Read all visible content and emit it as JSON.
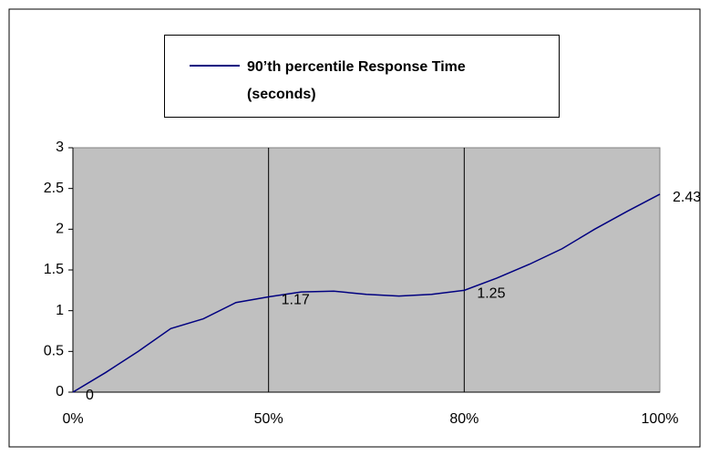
{
  "chart_data": {
    "type": "line",
    "categories": [
      "0%",
      null,
      null,
      null,
      null,
      null,
      "50%",
      null,
      null,
      null,
      null,
      null,
      "80%",
      null,
      null,
      null,
      null,
      null,
      "100%"
    ],
    "series": [
      {
        "name": "90’th percentile Response Time (seconds)",
        "color": "#000080",
        "values": [
          0,
          0.24,
          0.5,
          0.78,
          0.9,
          1.1,
          1.17,
          1.23,
          1.24,
          1.2,
          1.18,
          1.2,
          1.25,
          1.4,
          1.57,
          1.76,
          2.0,
          2.22,
          2.43
        ],
        "value_labels": [
          "0",
          null,
          null,
          null,
          null,
          null,
          "1.17",
          null,
          null,
          null,
          null,
          null,
          "1.25",
          null,
          null,
          null,
          null,
          null,
          "2.43"
        ]
      }
    ],
    "ylim": [
      0,
      3
    ],
    "yticks": [
      0,
      0.5,
      1,
      1.5,
      2,
      2.5,
      3
    ],
    "plot_color": "#c0c0c0",
    "grid": "x"
  }
}
